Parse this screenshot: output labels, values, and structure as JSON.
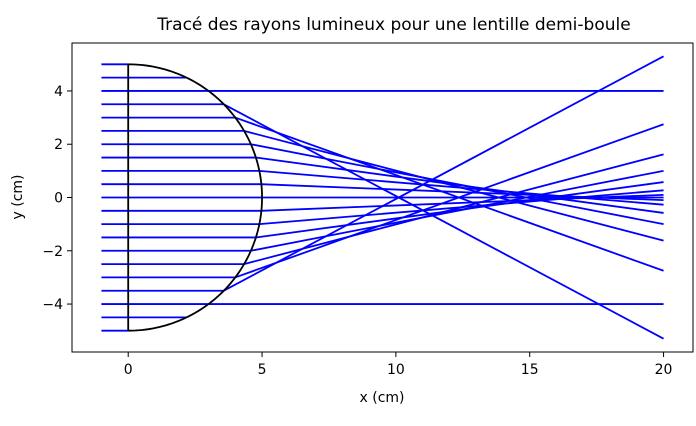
{
  "chart_data": {
    "type": "line",
    "title": "Tracé des rayons lumineux pour une lentille demi-boule",
    "xlabel": "x (cm)",
    "ylabel": "y (cm)",
    "xlim": [
      -2.1,
      21.1
    ],
    "ylim": [
      -5.8,
      5.8
    ],
    "xticks": [
      0,
      5,
      10,
      15,
      20
    ],
    "yticks": [
      -4,
      -2,
      0,
      2,
      4
    ],
    "xtick_labels": [
      "0",
      "5",
      "10",
      "15",
      "20"
    ],
    "ytick_labels": [
      "−4",
      "−2",
      "0",
      "2",
      "4"
    ],
    "grid": false,
    "colors": {
      "rays": "#0000ff",
      "lens": "#000000"
    },
    "lens": {
      "flat_face": {
        "x": [
          0,
          0
        ],
        "y": [
          -5,
          5
        ]
      },
      "curved_face": {
        "center": [
          0,
          0
        ],
        "radius": 5
      }
    },
    "rays": [
      {
        "y_in": 5.0,
        "x_start": -1,
        "x_exit": 0.0,
        "y_end": 5.0
      },
      {
        "y_in": 4.5,
        "x_start": -1,
        "x_exit": 2.18,
        "y_end": 4.5
      },
      {
        "y_in": 4.0,
        "x_start": -1,
        "x_exit": 3.0,
        "y_end": 4.0
      },
      {
        "y_in": 3.5,
        "x_start": -1,
        "x_exit": 3.57,
        "y_end": -5.3
      },
      {
        "y_in": 3.0,
        "x_start": -1,
        "x_exit": 4.0,
        "y_end": -2.75
      },
      {
        "y_in": 2.5,
        "x_start": -1,
        "x_exit": 4.33,
        "y_end": -1.62
      },
      {
        "y_in": 2.0,
        "x_start": -1,
        "x_exit": 4.58,
        "y_end": -1.0
      },
      {
        "y_in": 1.5,
        "x_start": -1,
        "x_exit": 4.77,
        "y_end": -0.58
      },
      {
        "y_in": 1.0,
        "x_start": -1,
        "x_exit": 4.9,
        "y_end": -0.27
      },
      {
        "y_in": 0.5,
        "x_start": -1,
        "x_exit": 4.97,
        "y_end": -0.1
      },
      {
        "y_in": 0.0,
        "x_start": -1,
        "x_exit": 5.0,
        "y_end": 0.0
      },
      {
        "y_in": -0.5,
        "x_start": -1,
        "x_exit": 4.97,
        "y_end": 0.1
      },
      {
        "y_in": -1.0,
        "x_start": -1,
        "x_exit": 4.9,
        "y_end": 0.27
      },
      {
        "y_in": -1.5,
        "x_start": -1,
        "x_exit": 4.77,
        "y_end": 0.58
      },
      {
        "y_in": -2.0,
        "x_start": -1,
        "x_exit": 4.58,
        "y_end": 1.0
      },
      {
        "y_in": -2.5,
        "x_start": -1,
        "x_exit": 4.33,
        "y_end": 1.62
      },
      {
        "y_in": -3.0,
        "x_start": -1,
        "x_exit": 4.0,
        "y_end": 2.75
      },
      {
        "y_in": -3.5,
        "x_start": -1,
        "x_exit": 3.57,
        "y_end": 5.3
      },
      {
        "y_in": -4.0,
        "x_start": -1,
        "x_exit": 3.0,
        "y_end": -4.0
      },
      {
        "y_in": -4.5,
        "x_start": -1,
        "x_exit": 2.18,
        "y_end": -4.5
      },
      {
        "y_in": -5.0,
        "x_start": -1,
        "x_exit": 0.0,
        "y_end": -5.0
      }
    ],
    "x_end": 20
  }
}
